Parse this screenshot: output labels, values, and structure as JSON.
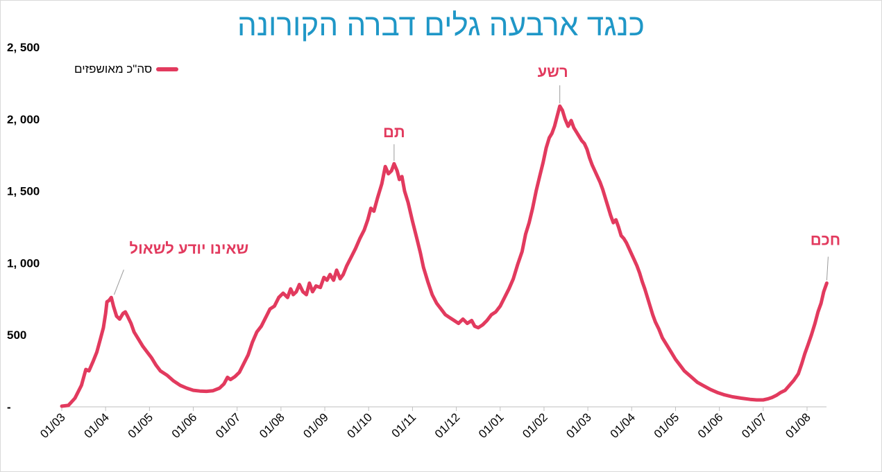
{
  "chart_data": {
    "type": "line",
    "title": "כנגד ארבעה גלים דברה הקורונה",
    "xlabel": "",
    "ylabel": "",
    "ylim": [
      0,
      2500
    ],
    "y_ticks": [
      {
        "value": 0,
        "label": "-"
      },
      {
        "value": 500,
        "label": "500"
      },
      {
        "value": 1000,
        "label": "1, 000"
      },
      {
        "value": 1500,
        "label": "1, 500"
      },
      {
        "value": 2000,
        "label": "2, 000"
      },
      {
        "value": 2500,
        "label": "2, 500"
      }
    ],
    "x_ticks": [
      "01/03",
      "01/04",
      "01/05",
      "01/06",
      "01/07",
      "01/08",
      "01/09",
      "01/10",
      "01/11",
      "01/12",
      "01/01",
      "01/02",
      "01/03",
      "01/04",
      "01/05",
      "01/06",
      "01/07",
      "01/08"
    ],
    "x_range": [
      0,
      17.5
    ],
    "grid": false,
    "legend_position": "top-left",
    "color": "#e23a5e",
    "series": [
      {
        "name": "סה\"כ מאושפזים",
        "points": [
          [
            0.0,
            5
          ],
          [
            0.15,
            10
          ],
          [
            0.3,
            60
          ],
          [
            0.45,
            150
          ],
          [
            0.55,
            260
          ],
          [
            0.62,
            250
          ],
          [
            0.72,
            320
          ],
          [
            0.8,
            380
          ],
          [
            0.88,
            470
          ],
          [
            0.95,
            550
          ],
          [
            1.0,
            650
          ],
          [
            1.03,
            730
          ],
          [
            1.08,
            740
          ],
          [
            1.13,
            760
          ],
          [
            1.18,
            700
          ],
          [
            1.25,
            630
          ],
          [
            1.32,
            610
          ],
          [
            1.4,
            650
          ],
          [
            1.45,
            660
          ],
          [
            1.5,
            630
          ],
          [
            1.58,
            580
          ],
          [
            1.65,
            520
          ],
          [
            1.75,
            470
          ],
          [
            1.85,
            420
          ],
          [
            1.95,
            380
          ],
          [
            2.05,
            340
          ],
          [
            2.15,
            290
          ],
          [
            2.25,
            250
          ],
          [
            2.4,
            220
          ],
          [
            2.55,
            180
          ],
          [
            2.7,
            150
          ],
          [
            2.85,
            130
          ],
          [
            3.0,
            115
          ],
          [
            3.15,
            110
          ],
          [
            3.3,
            108
          ],
          [
            3.45,
            112
          ],
          [
            3.6,
            130
          ],
          [
            3.7,
            160
          ],
          [
            3.78,
            205
          ],
          [
            3.85,
            190
          ],
          [
            3.95,
            210
          ],
          [
            4.05,
            240
          ],
          [
            4.15,
            300
          ],
          [
            4.25,
            360
          ],
          [
            4.35,
            450
          ],
          [
            4.45,
            520
          ],
          [
            4.55,
            560
          ],
          [
            4.65,
            620
          ],
          [
            4.75,
            680
          ],
          [
            4.85,
            700
          ],
          [
            4.95,
            760
          ],
          [
            5.05,
            790
          ],
          [
            5.15,
            760
          ],
          [
            5.22,
            820
          ],
          [
            5.28,
            780
          ],
          [
            5.35,
            800
          ],
          [
            5.42,
            850
          ],
          [
            5.5,
            800
          ],
          [
            5.58,
            780
          ],
          [
            5.65,
            860
          ],
          [
            5.72,
            800
          ],
          [
            5.8,
            840
          ],
          [
            5.9,
            830
          ],
          [
            5.98,
            900
          ],
          [
            6.05,
            880
          ],
          [
            6.12,
            920
          ],
          [
            6.2,
            880
          ],
          [
            6.27,
            950
          ],
          [
            6.35,
            890
          ],
          [
            6.42,
            920
          ],
          [
            6.5,
            980
          ],
          [
            6.6,
            1040
          ],
          [
            6.7,
            1100
          ],
          [
            6.8,
            1170
          ],
          [
            6.9,
            1230
          ],
          [
            6.98,
            1300
          ],
          [
            7.05,
            1380
          ],
          [
            7.12,
            1360
          ],
          [
            7.2,
            1450
          ],
          [
            7.3,
            1550
          ],
          [
            7.38,
            1670
          ],
          [
            7.45,
            1620
          ],
          [
            7.52,
            1640
          ],
          [
            7.58,
            1690
          ],
          [
            7.65,
            1640
          ],
          [
            7.7,
            1580
          ],
          [
            7.76,
            1600
          ],
          [
            7.82,
            1500
          ],
          [
            7.9,
            1420
          ],
          [
            8.0,
            1290
          ],
          [
            8.1,
            1170
          ],
          [
            8.18,
            1070
          ],
          [
            8.25,
            970
          ],
          [
            8.35,
            870
          ],
          [
            8.45,
            780
          ],
          [
            8.55,
            720
          ],
          [
            8.65,
            680
          ],
          [
            8.75,
            640
          ],
          [
            8.85,
            620
          ],
          [
            8.95,
            600
          ],
          [
            9.05,
            580
          ],
          [
            9.15,
            610
          ],
          [
            9.25,
            580
          ],
          [
            9.35,
            600
          ],
          [
            9.42,
            560
          ],
          [
            9.5,
            550
          ],
          [
            9.6,
            570
          ],
          [
            9.7,
            600
          ],
          [
            9.8,
            640
          ],
          [
            9.9,
            660
          ],
          [
            10.0,
            700
          ],
          [
            10.1,
            760
          ],
          [
            10.2,
            820
          ],
          [
            10.3,
            890
          ],
          [
            10.4,
            990
          ],
          [
            10.5,
            1080
          ],
          [
            10.58,
            1200
          ],
          [
            10.66,
            1280
          ],
          [
            10.74,
            1380
          ],
          [
            10.82,
            1500
          ],
          [
            10.9,
            1600
          ],
          [
            10.98,
            1700
          ],
          [
            11.05,
            1800
          ],
          [
            11.12,
            1870
          ],
          [
            11.18,
            1900
          ],
          [
            11.24,
            1950
          ],
          [
            11.3,
            2020
          ],
          [
            11.36,
            2090
          ],
          [
            11.42,
            2060
          ],
          [
            11.48,
            2000
          ],
          [
            11.55,
            1950
          ],
          [
            11.62,
            1990
          ],
          [
            11.68,
            1940
          ],
          [
            11.74,
            1910
          ],
          [
            11.8,
            1880
          ],
          [
            11.86,
            1850
          ],
          [
            11.92,
            1830
          ],
          [
            11.98,
            1790
          ],
          [
            12.04,
            1730
          ],
          [
            12.1,
            1680
          ],
          [
            12.16,
            1640
          ],
          [
            12.22,
            1600
          ],
          [
            12.28,
            1560
          ],
          [
            12.34,
            1510
          ],
          [
            12.4,
            1450
          ],
          [
            12.46,
            1390
          ],
          [
            12.52,
            1330
          ],
          [
            12.58,
            1280
          ],
          [
            12.64,
            1300
          ],
          [
            12.7,
            1250
          ],
          [
            12.76,
            1190
          ],
          [
            12.82,
            1170
          ],
          [
            12.88,
            1140
          ],
          [
            12.94,
            1100
          ],
          [
            13.0,
            1060
          ],
          [
            13.06,
            1020
          ],
          [
            13.12,
            980
          ],
          [
            13.18,
            930
          ],
          [
            13.24,
            870
          ],
          [
            13.3,
            820
          ],
          [
            13.36,
            760
          ],
          [
            13.42,
            700
          ],
          [
            13.48,
            640
          ],
          [
            13.54,
            590
          ],
          [
            13.62,
            540
          ],
          [
            13.7,
            480
          ],
          [
            13.8,
            430
          ],
          [
            13.9,
            380
          ],
          [
            14.0,
            330
          ],
          [
            14.1,
            290
          ],
          [
            14.2,
            250
          ],
          [
            14.35,
            210
          ],
          [
            14.5,
            170
          ],
          [
            14.65,
            145
          ],
          [
            14.8,
            120
          ],
          [
            14.95,
            100
          ],
          [
            15.1,
            85
          ],
          [
            15.3,
            70
          ],
          [
            15.5,
            60
          ],
          [
            15.7,
            52
          ],
          [
            15.85,
            48
          ],
          [
            16.0,
            48
          ],
          [
            16.1,
            55
          ],
          [
            16.2,
            65
          ],
          [
            16.3,
            80
          ],
          [
            16.4,
            100
          ],
          [
            16.5,
            115
          ],
          [
            16.6,
            150
          ],
          [
            16.7,
            185
          ],
          [
            16.8,
            230
          ],
          [
            16.88,
            300
          ],
          [
            16.95,
            370
          ],
          [
            17.02,
            430
          ],
          [
            17.1,
            500
          ],
          [
            17.18,
            580
          ],
          [
            17.25,
            660
          ],
          [
            17.32,
            720
          ],
          [
            17.38,
            800
          ],
          [
            17.45,
            860
          ]
        ]
      }
    ],
    "annotations": [
      {
        "text": "שאינו יודע לשאול",
        "x": 1.13,
        "y": 760
      },
      {
        "text": "תם",
        "x": 7.58,
        "y": 1690
      },
      {
        "text": "רשע",
        "x": 11.36,
        "y": 2090
      },
      {
        "text": "חכם",
        "x": 17.45,
        "y": 860
      }
    ]
  }
}
